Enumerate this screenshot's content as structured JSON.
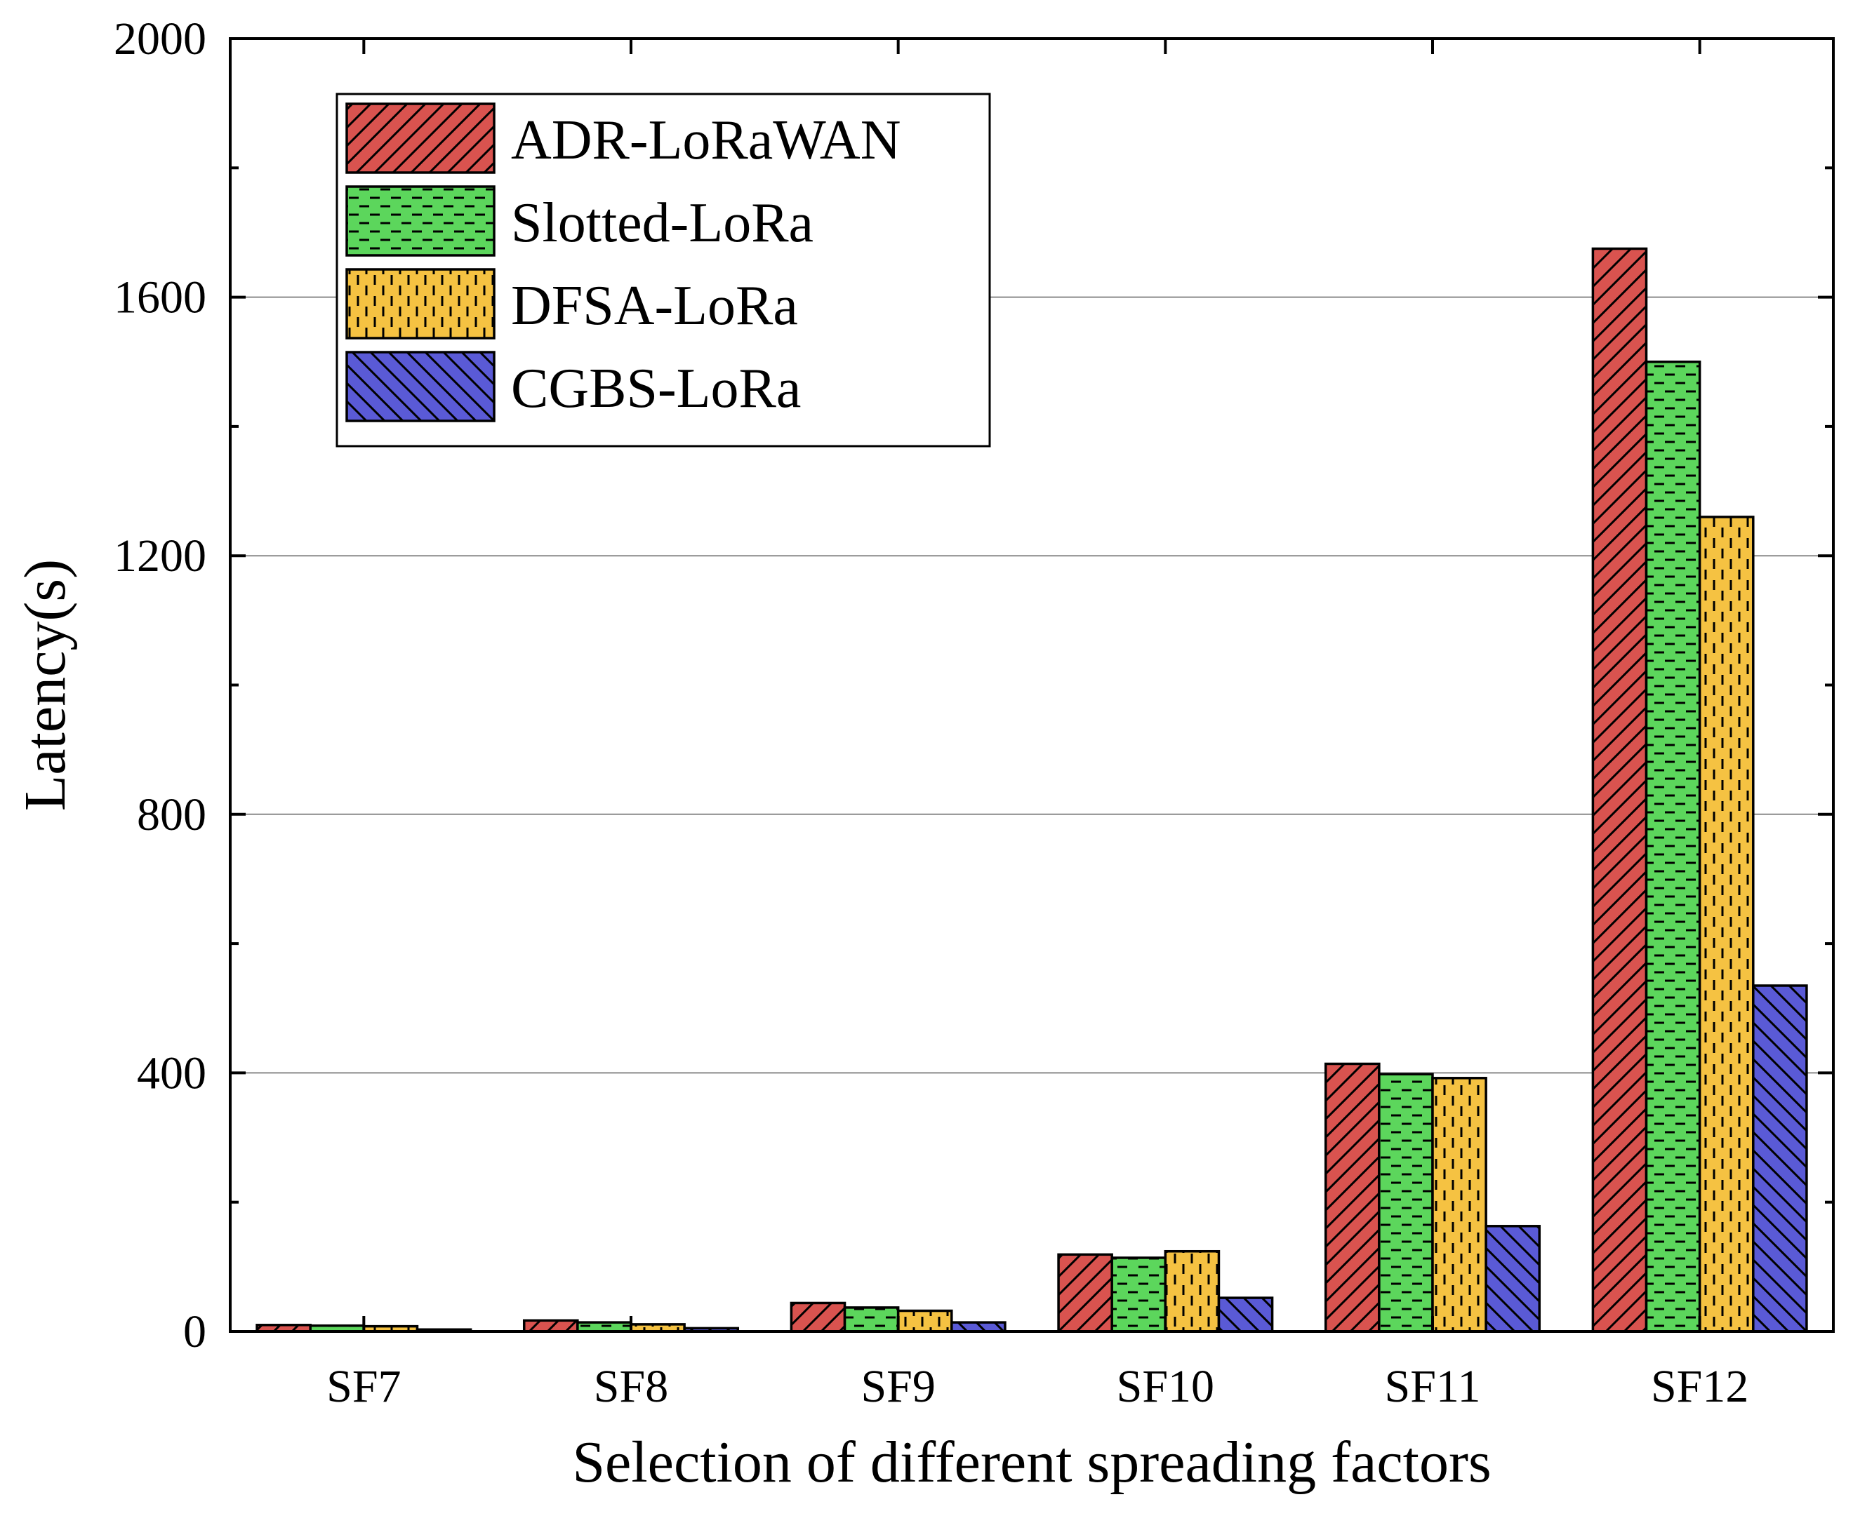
{
  "chart_data": {
    "type": "bar",
    "title": "",
    "xlabel": "Selection of different spreading factors",
    "ylabel": "Latency(s)",
    "ylim": [
      0,
      2000
    ],
    "yticks": [
      0,
      400,
      800,
      1200,
      1600,
      2000
    ],
    "grid": "horizontal",
    "legend": "top-left",
    "categories": [
      "SF7",
      "SF8",
      "SF9",
      "SF10",
      "SF11",
      "SF12"
    ],
    "series": [
      {
        "name": "ADR-LoRaWAN",
        "color": "#d9534f",
        "pattern": "diagonal-hatch",
        "values": [
          10,
          17,
          44,
          119,
          414,
          1675
        ]
      },
      {
        "name": "Slotted-LoRa",
        "color": "#5cd65c",
        "pattern": "horizontal-dash",
        "values": [
          9,
          14,
          37,
          114,
          398,
          1500
        ]
      },
      {
        "name": "DFSA-LoRa",
        "color": "#f5c242",
        "pattern": "vertical-dash",
        "values": [
          8,
          11,
          32,
          124,
          392,
          1260
        ]
      },
      {
        "name": "CGBS-LoRa",
        "color": "#5a5ad6",
        "pattern": "back-diagonal-hatch",
        "values": [
          3,
          5,
          14,
          52,
          163,
          535
        ]
      }
    ]
  }
}
